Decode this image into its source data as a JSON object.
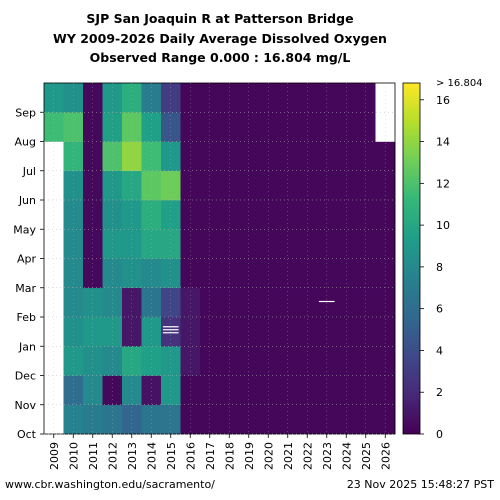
{
  "title_lines": [
    "SJP San Joaquin R at Patterson Bridge",
    "WY 2009-2026 Daily Average Dissolved Oxygen",
    "Observed Range 0.000 : 16.804 mg/L"
  ],
  "footer": {
    "source": "www.cbr.washington.edu/sacramento/",
    "timestamp": "23 Nov 2025 15:48:27 PST"
  },
  "chart_data": {
    "type": "heatmap",
    "x": [
      "2009",
      "2010",
      "2011",
      "2012",
      "2013",
      "2014",
      "2015",
      "2016",
      "2017",
      "2018",
      "2019",
      "2020",
      "2021",
      "2022",
      "2023",
      "2024",
      "2025",
      "2026"
    ],
    "y": [
      "Oct",
      "Nov",
      "Dec",
      "Jan",
      "Feb",
      "Mar",
      "Apr",
      "May",
      "Jun",
      "Jul",
      "Aug",
      "Sep"
    ],
    "y_note_top_label": "",
    "colorbar": {
      "min": 0,
      "max": 16.804,
      "ticks": [
        0,
        2,
        4,
        6,
        8,
        10,
        12,
        14,
        16
      ],
      "over_label": "> 16.804",
      "colors": [
        "#440154",
        "#482878",
        "#3e4989",
        "#31688e",
        "#26828e",
        "#1f9e89",
        "#35b779",
        "#6ece58",
        "#b5de2b",
        "#fde725"
      ]
    },
    "missing_color": "#ffffff",
    "matrix": [
      [
        null,
        7.5,
        7,
        6.5,
        5.5,
        6.5,
        6.5,
        0.3,
        0.3,
        0.3,
        0.3,
        0.3,
        0.3,
        0.3,
        0.3,
        0.3,
        0.3,
        0.3
      ],
      [
        null,
        6,
        8,
        0.4,
        8,
        0.8,
        9,
        0.3,
        0.3,
        0.3,
        0.3,
        0.3,
        0.3,
        0.3,
        0.3,
        0.3,
        0.3,
        0.3
      ],
      [
        null,
        9,
        8.5,
        8,
        10,
        9.5,
        9,
        1,
        0.3,
        0.3,
        0.3,
        0.3,
        0.3,
        0.3,
        0.3,
        0.3,
        0.3,
        0.3
      ],
      [
        null,
        8.5,
        9,
        9,
        1,
        9,
        2.5,
        1,
        0.3,
        0.3,
        0.3,
        0.3,
        0.3,
        0.3,
        0.3,
        0.3,
        0.3,
        0.3
      ],
      [
        null,
        8,
        8.5,
        8,
        1,
        6.5,
        3.5,
        1,
        0.3,
        0.3,
        0.3,
        0.3,
        0.3,
        0.3,
        0.3,
        0.3,
        0.3,
        0.3
      ],
      [
        null,
        8,
        0.4,
        8,
        8.5,
        8,
        8.5,
        0.3,
        0.3,
        0.3,
        0.3,
        0.3,
        0.3,
        0.3,
        0.3,
        0.3,
        0.3,
        0.3
      ],
      [
        null,
        8,
        0.4,
        9,
        9,
        10,
        10,
        0.3,
        0.3,
        0.3,
        0.3,
        0.3,
        0.3,
        0.3,
        0.3,
        0.3,
        0.3,
        0.3
      ],
      [
        null,
        8,
        0.4,
        8.5,
        9,
        10.5,
        9.5,
        0.3,
        0.3,
        0.3,
        0.3,
        0.3,
        0.3,
        0.3,
        0.3,
        0.3,
        0.3,
        0.3
      ],
      [
        null,
        8.5,
        0.4,
        9,
        10,
        12.5,
        13,
        0.3,
        0.3,
        0.3,
        0.3,
        0.3,
        0.3,
        0.3,
        0.3,
        0.3,
        0.3,
        0.3
      ],
      [
        null,
        11,
        0.4,
        12,
        14,
        11.5,
        9,
        0.3,
        0.3,
        0.3,
        0.3,
        0.3,
        0.3,
        0.3,
        0.3,
        0.3,
        0.3,
        0.3
      ],
      [
        11.5,
        12,
        0.4,
        9.5,
        12.5,
        9.5,
        4.5,
        0.3,
        0.3,
        0.3,
        0.3,
        0.3,
        0.3,
        0.3,
        0.3,
        0.3,
        0.3,
        null
      ],
      [
        9,
        8.5,
        0.4,
        9,
        10.5,
        7,
        3,
        0.3,
        0.3,
        0.3,
        0.3,
        0.3,
        0.3,
        0.3,
        0.3,
        0.3,
        0.3,
        null
      ]
    ],
    "annotations": [
      {
        "year": "2023",
        "month": "Feb",
        "note": "short white streak (missing days)"
      },
      {
        "year": "2015",
        "month": "Jan",
        "note": "white streaks (missing days)"
      }
    ]
  }
}
